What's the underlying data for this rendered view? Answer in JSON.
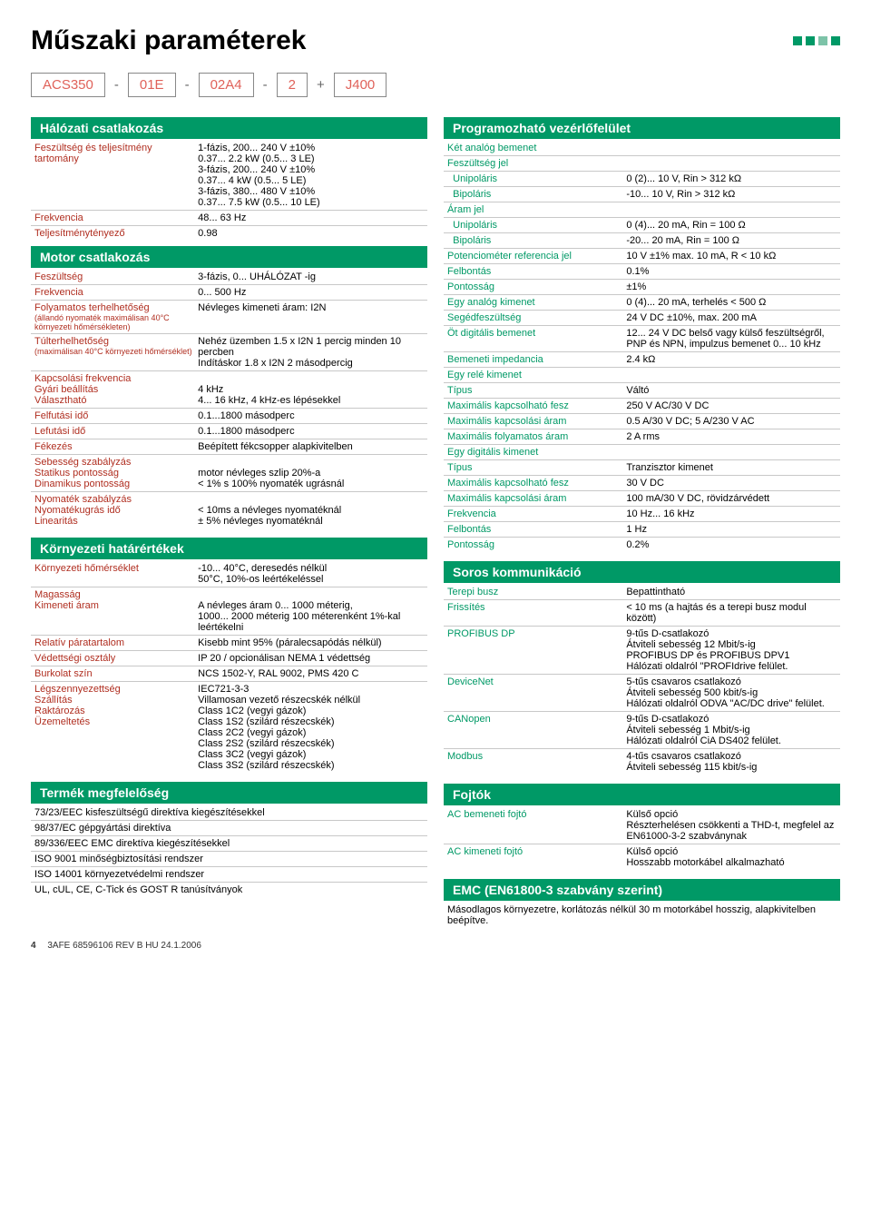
{
  "title": "Műszaki paraméterek",
  "partnum": {
    "p1": "ACS350",
    "p2": "01E",
    "p3": "02A4",
    "p4": "2",
    "p5": "J400"
  },
  "left": {
    "s1": {
      "hd": "Hálózati csatlakozás",
      "rows": [
        [
          "Feszültség és teljesítmény tartomány",
          "1-fázis, 200... 240 V ±10%\n0.37... 2.2 kW (0.5... 3 LE)\n3-fázis, 200... 240 V ±10%\n0.37... 4 kW (0.5... 5 LE)\n3-fázis, 380... 480 V ±10%\n0.37... 7.5 kW (0.5... 10 LE)"
        ],
        [
          "Frekvencia",
          "48... 63 Hz"
        ],
        [
          "Teljesítménytényező",
          "0.98"
        ]
      ]
    },
    "s2": {
      "hd": "Motor csatlakozás",
      "rows": [
        [
          "Feszültség",
          "3-fázis, 0... UHÁLÓZAT -ig"
        ],
        [
          "Frekvencia",
          "0... 500 Hz"
        ],
        [
          "Folyamatos terhelhetőség\n(állandó nyomaték maximálisan 40°C környezeti hőmérsékleten)",
          "Névleges kimeneti áram: I2N"
        ],
        [
          "Túlterhelhetőség\n(maximálisan 40°C környezeti hőmérséklet)",
          "Nehéz üzemben 1.5 x I2N 1 percig minden 10 percben\nIndításkor 1.8 x I2N 2 másodpercig"
        ],
        [
          "Kapcsolási frekvencia\nGyári beállítás\nVálasztható",
          "\n4 kHz\n4... 16 kHz, 4 kHz-es lépésekkel"
        ],
        [
          "Felfutási idő",
          "0.1...1800 másodperc"
        ],
        [
          "Lefutási idő",
          "0.1...1800 másodperc"
        ],
        [
          "Fékezés",
          "Beépített fékcsopper alapkivitelben"
        ],
        [
          "Sebesség szabályzás\nStatikus pontosság\nDinamikus pontosság",
          "\nmotor névleges szlip 20%-a\n< 1% s 100% nyomaték ugrásnál"
        ],
        [
          "Nyomaték szabályzás\nNyomatékugrás idő\nLinearitás",
          "\n< 10ms a névleges nyomatéknál\n± 5% névleges nyomatéknál"
        ]
      ]
    },
    "s3": {
      "hd": "Környezeti határértékek",
      "rows": [
        [
          "Környezeti hőmérséklet",
          "-10... 40°C, deresedés nélkül\n50°C, 10%-os leértékeléssel"
        ],
        [
          "Magasság\nKimeneti áram",
          "\nA névleges áram 0... 1000 méterig,\n1000... 2000 méterig 100 méterenként 1%-kal leértékelni"
        ],
        [
          "Relatív páratartalom",
          "Kisebb mint 95% (páralecsapódás nélkül)"
        ],
        [
          "Védettségi osztály",
          "IP 20 / opcionálisan NEMA 1 védettség"
        ],
        [
          "Burkolat szín",
          "NCS 1502-Y, RAL 9002, PMS 420 C"
        ],
        [
          "Légszennyezettség\n\nSzállítás\n\nRaktározás\n\nÜzemeltetés",
          "IEC721-3-3\nVillamosan vezető részecskék nélkül\nClass 1C2 (vegyi gázok)\nClass 1S2 (szilárd részecskék)\nClass 2C2 (vegyi gázok)\nClass 2S2 (szilárd részecskék)\nClass 3C2 (vegyi gázok)\nClass 3S2 (szilárd részecskék)"
        ]
      ]
    },
    "s4": {
      "hd": "Termék megfelelőség",
      "lines": [
        "73/23/EEC kisfeszültségű direktíva kiegészítésekkel",
        "98/37/EC gépgyártási direktíva",
        "89/336/EEC EMC direktíva kiegészítésekkel",
        "ISO 9001 minőségbiztosítási rendszer",
        "ISO 14001 környezetvédelmi rendszer",
        "UL, cUL, CE, C-Tick és GOST R tanúsítványok"
      ]
    }
  },
  "right": {
    "s1": {
      "hd": "Programozható vezérlőfelület",
      "rows": [
        [
          "Két analóg bemenet",
          ""
        ],
        [
          "Feszültség jel",
          ""
        ],
        [
          "  Unipoláris",
          "0 (2)... 10 V, Rin > 312 kΩ"
        ],
        [
          "  Bipoláris",
          "-10... 10 V, Rin > 312 kΩ"
        ],
        [
          "Áram jel",
          ""
        ],
        [
          "  Unipoláris",
          "0 (4)... 20 mA, Rin = 100 Ω"
        ],
        [
          "  Bipoláris",
          "-20... 20 mA, Rin = 100 Ω"
        ],
        [
          "Potenciométer referencia jel",
          "10 V ±1% max. 10 mA, R < 10 kΩ"
        ],
        [
          "Felbontás",
          "0.1%"
        ],
        [
          "Pontosság",
          "±1%"
        ],
        [
          "Egy analóg kimenet",
          "0 (4)... 20 mA, terhelés < 500 Ω"
        ],
        [
          "Segédfeszültség",
          "24 V DC ±10%, max. 200 mA"
        ],
        [
          "Öt digitális bemenet",
          "12... 24 V DC belső vagy külső feszültségről, PNP és NPN, impulzus bemenet 0... 10 kHz"
        ],
        [
          "Bemeneti impedancia",
          "2.4 kΩ"
        ],
        [
          "Egy relé kimenet",
          ""
        ],
        [
          "Típus",
          "Váltó"
        ],
        [
          "Maximális kapcsolható fesz",
          "250 V AC/30 V DC"
        ],
        [
          "Maximális kapcsolási áram",
          "0.5 A/30 V DC; 5 A/230 V AC"
        ],
        [
          "Maximális folyamatos áram",
          "2 A rms"
        ],
        [
          "Egy digitális kimenet",
          ""
        ],
        [
          "Típus",
          "Tranzisztor kimenet"
        ],
        [
          "Maximális kapcsolható fesz",
          "30 V DC"
        ],
        [
          "Maximális kapcsolási áram",
          "100 mA/30 V DC, rövidzárvédett"
        ],
        [
          "Frekvencia",
          "10 Hz... 16 kHz"
        ],
        [
          "Felbontás",
          "1 Hz"
        ],
        [
          "Pontosság",
          "0.2%"
        ]
      ]
    },
    "s2": {
      "hd": "Soros kommunikáció",
      "rows": [
        [
          "Terepi busz",
          "Bepattintható"
        ],
        [
          "Frissítés",
          "< 10 ms (a hajtás és a terepi busz modul között)"
        ],
        [
          "PROFIBUS DP",
          "9-tűs D-csatlakozó\nÁtviteli sebesség 12 Mbit/s-ig\nPROFIBUS DP és PROFIBUS DPV1\nHálózati oldalról \"PROFIdrive felület."
        ],
        [
          "DeviceNet",
          "5-tűs csavaros csatlakozó\nÁtviteli sebesség 500 kbit/s-ig\nHálózati oldalról ODVA \"AC/DC drive\" felület."
        ],
        [
          "CANopen",
          "9-tűs D-csatlakozó\nÁtviteli sebesség 1 Mbit/s-ig\nHálózati oldalról CiA DS402 felület."
        ],
        [
          "Modbus",
          "4-tűs csavaros csatlakozó\nÁtviteli sebesség 115 kbit/s-ig"
        ]
      ]
    },
    "s3": {
      "hd": "Fojtók",
      "rows": [
        [
          "AC bemeneti fojtó",
          "Külső opció\nRészterhelésen csökkenti a THD-t, megfelel az EN61000-3-2 szabványnak"
        ],
        [
          "AC kimeneti fojtó",
          "Külső opció\nHosszabb motorkábel alkalmazható"
        ]
      ]
    },
    "s4": {
      "hd": "EMC (EN61800-3 szabvány szerint)",
      "text": "Másodlagos környezetre, korlátozás nélkül 30 m motorkábel hosszig, alapkivitelben beépítve."
    }
  },
  "footer_page": "4",
  "footer_doc": "3AFE 68596106 REV B HU 24.1.2006"
}
